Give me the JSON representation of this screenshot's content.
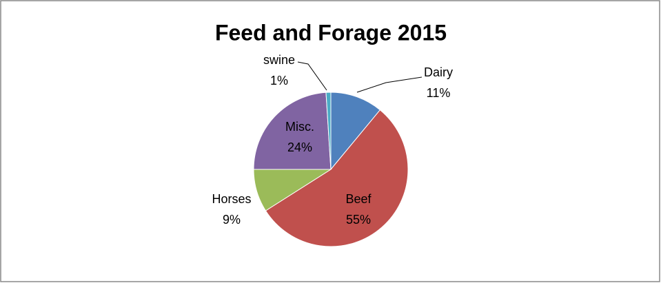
{
  "chart_data": {
    "type": "pie",
    "title": "Feed and Forage 2015",
    "categories": [
      "Dairy",
      "Beef",
      "Horses",
      "Misc.",
      "swine"
    ],
    "values": [
      11,
      55,
      9,
      24,
      1
    ],
    "value_labels": [
      "11%",
      "55%",
      "9%",
      "24%",
      "1%"
    ],
    "colors": [
      "#4f81bd",
      "#c0504d",
      "#9bbb59",
      "#8064a2",
      "#4bacc6"
    ]
  }
}
